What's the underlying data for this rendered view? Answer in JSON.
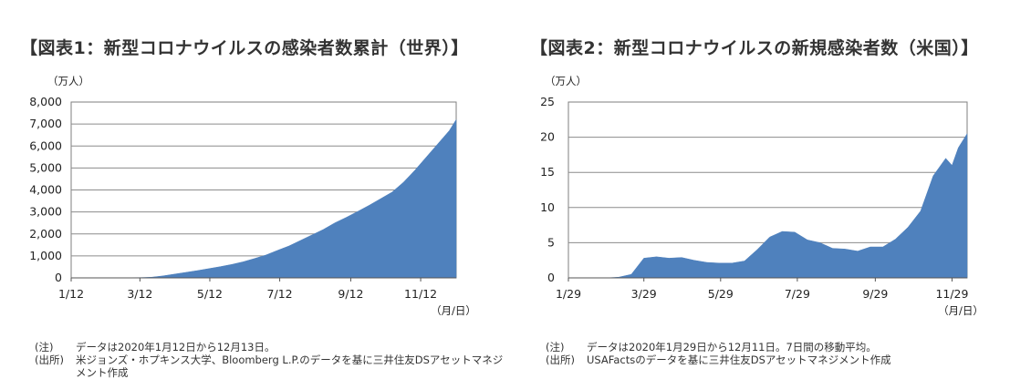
{
  "charts": [
    {
      "title": "【図表1：新型コロナウイルスの感染者数累計（世界）】",
      "notes": [
        {
          "key": "(注)",
          "text": "データは2020年1月12日から12月13日。"
        },
        {
          "key": "(出所)",
          "text": "米ジョンズ・ホプキンス大学、Bloomberg L.P.のデータを基に三井住友DSアセットマネジメント作成"
        }
      ]
    },
    {
      "title": "【図表2：新型コロナウイルスの新規感染者数（米国）】",
      "notes": [
        {
          "key": "(注)",
          "text": "データは2020年1月29日から12月11日。7日間の移動平均。"
        },
        {
          "key": "(出所)",
          "text": "USAFactsのデータを基に三井住友DSアセットマネジメント作成"
        }
      ]
    }
  ],
  "chart_data": [
    {
      "type": "area",
      "title": "【図表1：新型コロナウイルスの感染者数累計（世界）】",
      "unit_label": "（万人）",
      "x_unit_label": "（月/日）",
      "x_start": "1/12",
      "x_end": "12/13",
      "x_ticks": [
        "1/12",
        "3/12",
        "5/12",
        "7/12",
        "9/12",
        "11/12"
      ],
      "y_ticks": [
        "0",
        "1,000",
        "2,000",
        "3,000",
        "4,000",
        "5,000",
        "6,000",
        "7,000",
        "8,000"
      ],
      "ylim": [
        0,
        8000
      ],
      "grid": true,
      "color": "#4f81bd",
      "x": [
        "1/12",
        "1/22",
        "2/1",
        "2/11",
        "2/21",
        "3/2",
        "3/12",
        "3/22",
        "4/1",
        "4/11",
        "4/21",
        "5/1",
        "5/11",
        "5/21",
        "5/31",
        "6/10",
        "6/20",
        "6/30",
        "7/10",
        "7/20",
        "7/30",
        "8/9",
        "8/19",
        "8/29",
        "9/8",
        "9/18",
        "9/28",
        "10/8",
        "10/18",
        "10/28",
        "11/7",
        "11/17",
        "11/27",
        "12/7",
        "12/13"
      ],
      "values": [
        0,
        0,
        1,
        4,
        7,
        9,
        13,
        30,
        90,
        170,
        250,
        330,
        420,
        510,
        610,
        730,
        880,
        1040,
        1250,
        1450,
        1700,
        1950,
        2200,
        2500,
        2750,
        3020,
        3300,
        3600,
        3900,
        4350,
        4900,
        5500,
        6100,
        6700,
        7200
      ]
    },
    {
      "type": "area",
      "title": "【図表2：新型コロナウイルスの新規感染者数（米国）】",
      "unit_label": "（万人）",
      "x_unit_label": "（月/日）",
      "x_start": "1/29",
      "x_end": "12/11",
      "x_ticks": [
        "1/29",
        "3/29",
        "5/29",
        "7/29",
        "9/29",
        "11/29"
      ],
      "y_ticks": [
        "0",
        "5",
        "10",
        "15",
        "20",
        "25"
      ],
      "ylim": [
        0,
        25
      ],
      "grid": true,
      "color": "#4f81bd",
      "x": [
        "1/29",
        "2/8",
        "2/18",
        "2/28",
        "3/9",
        "3/19",
        "3/29",
        "4/8",
        "4/18",
        "4/28",
        "5/8",
        "5/18",
        "5/28",
        "6/7",
        "6/17",
        "6/27",
        "7/7",
        "7/17",
        "7/27",
        "8/6",
        "8/16",
        "8/26",
        "9/5",
        "9/15",
        "9/25",
        "10/5",
        "10/15",
        "10/25",
        "11/4",
        "11/14",
        "11/24",
        "11/29",
        "12/4",
        "12/11"
      ],
      "values": [
        0,
        0,
        0,
        0,
        0.1,
        0.5,
        2.8,
        3.0,
        2.8,
        2.9,
        2.5,
        2.2,
        2.1,
        2.1,
        2.4,
        4.0,
        5.8,
        6.6,
        6.5,
        5.4,
        5.0,
        4.2,
        4.1,
        3.8,
        4.4,
        4.4,
        5.5,
        7.2,
        9.5,
        14.5,
        17.0,
        16.0,
        18.5,
        20.5
      ]
    }
  ]
}
